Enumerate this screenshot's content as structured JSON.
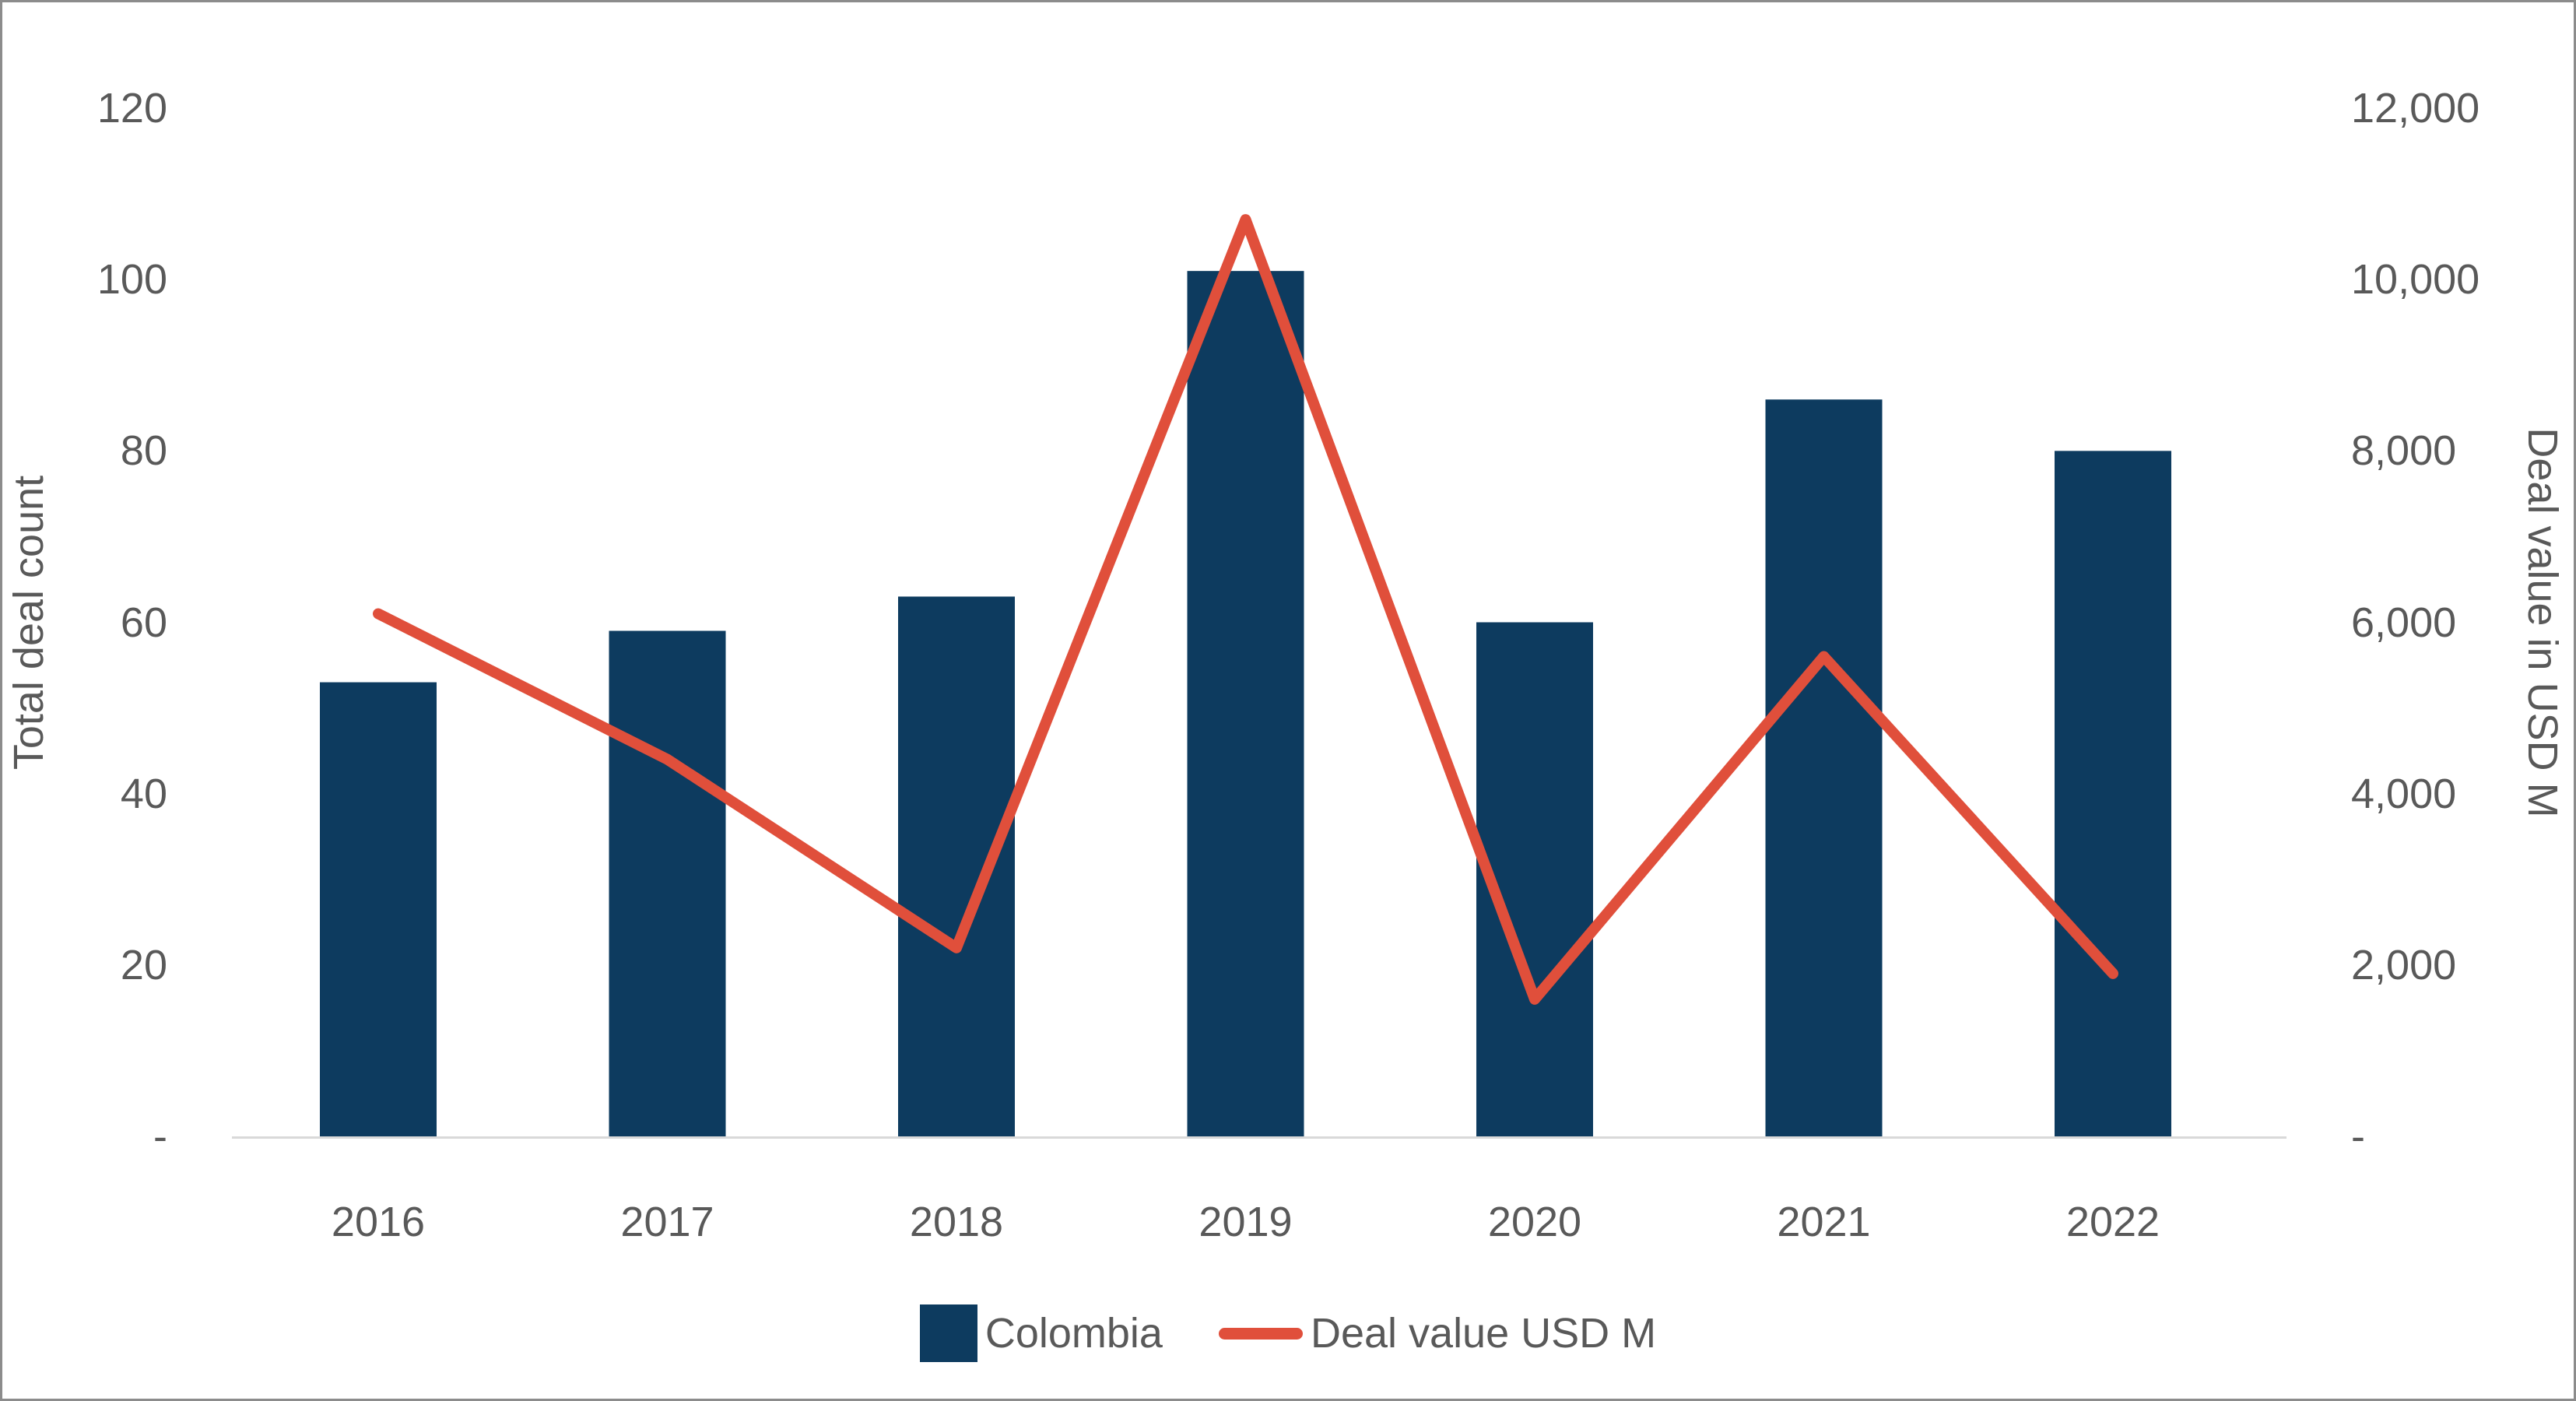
{
  "chart_data": {
    "type": "combo",
    "title": "",
    "categories": [
      "2016",
      "2017",
      "2018",
      "2019",
      "2020",
      "2021",
      "2022"
    ],
    "series": [
      {
        "name": "Colombia",
        "type": "bar",
        "axis": "left",
        "values": [
          53,
          59,
          63,
          101,
          60,
          86,
          80
        ]
      },
      {
        "name": "Deal value USD M",
        "type": "line",
        "axis": "right",
        "values": [
          6100,
          4400,
          2200,
          10700,
          1600,
          5600,
          1900
        ]
      }
    ],
    "left_axis": {
      "title": "Total deal count",
      "min": 0,
      "max": 120,
      "tick_step": 20,
      "tick_labels": [
        "-",
        "20",
        "40",
        "60",
        "80",
        "100",
        "120"
      ]
    },
    "right_axis": {
      "title": "Deal value in USD M",
      "min": 0,
      "max": 12000,
      "tick_step": 2000,
      "tick_labels": [
        "-",
        "2,000",
        "4,000",
        "6,000",
        "8,000",
        "10,000",
        "12,000"
      ]
    },
    "legend": {
      "position": "bottom",
      "entries": [
        "Colombia",
        "Deal value USD M"
      ]
    },
    "grid": "baseline-only"
  },
  "colors": {
    "bar": "#0D3B5F",
    "line": "#E04F3B",
    "text": "#595959",
    "baseline": "#D9D9D9",
    "background": "#FFFFFF"
  }
}
